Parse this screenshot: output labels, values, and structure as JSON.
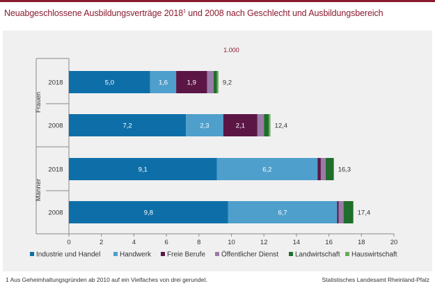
{
  "title_main": "Neuabgeschlossene Ausbildungsverträge 2018",
  "title_sup": "1",
  "title_rest": " und 2008 nach Geschlecht und Ausbildungsbereich",
  "footnote": "1 Aus Geheimhaltungsgründen  ab 2010 auf ein Vielfaches von drei gerundet.",
  "source": "Statistisches Landesamt Rheinland-Pfalz",
  "colors": {
    "title": "#8b1a2e",
    "industrie": "#0e6fa8",
    "handwerk": "#4f9fcc",
    "freie": "#5c1646",
    "oeffentlich": "#9a7ba8",
    "landwirtschaft": "#1f6e2c",
    "hauswirtschaft": "#6aaa5a",
    "grid": "#cfcfcf"
  },
  "chart_data": {
    "type": "bar",
    "orientation": "horizontal",
    "stacked": true,
    "unit_label": "1.000",
    "groups": [
      {
        "name": "Frauen",
        "categories": [
          "2018",
          "2008"
        ]
      },
      {
        "name": "Männer",
        "categories": [
          "2018",
          "2008"
        ]
      }
    ],
    "categories": [
      "2018",
      "2008",
      "2018",
      "2008"
    ],
    "series": [
      {
        "name": "Industrie und Handel",
        "color_key": "industrie",
        "values": [
          5.0,
          7.2,
          9.1,
          9.8
        ],
        "labels": [
          "5,0",
          "7,2",
          "9,1",
          "9,8"
        ]
      },
      {
        "name": "Handwerk",
        "color_key": "handwerk",
        "values": [
          1.6,
          2.3,
          6.2,
          6.7
        ],
        "labels": [
          "1,6",
          "2,3",
          "6,2",
          "6,7"
        ]
      },
      {
        "name": "Freie Berufe",
        "color_key": "freie",
        "values": [
          1.9,
          2.1,
          0.2,
          0.1
        ],
        "labels": [
          "1,9",
          "2,1",
          "",
          ""
        ]
      },
      {
        "name": "Öffentlicher Dienst",
        "color_key": "oeffentlich",
        "values": [
          0.4,
          0.4,
          0.3,
          0.3
        ],
        "labels": [
          "",
          "",
          "",
          ""
        ]
      },
      {
        "name": "Landwirtschaft",
        "color_key": "landwirtschaft",
        "values": [
          0.2,
          0.3,
          0.5,
          0.6
        ],
        "labels": [
          "",
          "",
          "",
          ""
        ]
      },
      {
        "name": "Hauswirtschaft",
        "color_key": "hauswirtschaft",
        "values": [
          0.1,
          0.1,
          0.0,
          0.0
        ],
        "labels": [
          "",
          "",
          "",
          ""
        ]
      }
    ],
    "totals": [
      9.2,
      12.4,
      16.3,
      17.4
    ],
    "total_labels": [
      "9,2",
      "12,4",
      "16,3",
      "17,4"
    ],
    "xlim": [
      0,
      20
    ],
    "xticks": [
      0,
      2,
      4,
      6,
      8,
      10,
      12,
      14,
      16,
      18,
      20
    ],
    "grid": false,
    "legend_position": "bottom"
  }
}
